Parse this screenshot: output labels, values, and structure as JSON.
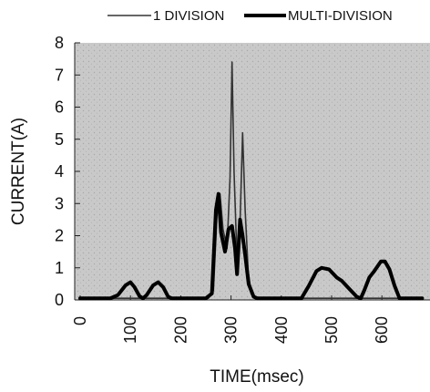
{
  "chart_data": {
    "type": "line",
    "title": "",
    "xlabel": "TIME(msec)",
    "ylabel": "CURRENT(A)",
    "xlim": [
      0,
      680
    ],
    "ylim": [
      0,
      8
    ],
    "x_ticks": [
      0,
      100,
      200,
      300,
      400,
      500,
      600
    ],
    "y_ticks": [
      0,
      1,
      2,
      3,
      4,
      5,
      6,
      7,
      8
    ],
    "grid": false,
    "legend_position": "top",
    "plot_background": "#c8c8c8",
    "series": [
      {
        "name": "1 DIVISION",
        "color": "#333333",
        "points": [
          [
            0,
            0.05
          ],
          [
            255,
            0.05
          ],
          [
            265,
            0.3
          ],
          [
            272,
            2.6
          ],
          [
            278,
            3.3
          ],
          [
            284,
            2.2
          ],
          [
            292,
            1.6
          ],
          [
            298,
            3.8
          ],
          [
            302,
            7.4
          ],
          [
            306,
            4.0
          ],
          [
            312,
            1.2
          ],
          [
            318,
            2.4
          ],
          [
            323,
            5.2
          ],
          [
            328,
            2.8
          ],
          [
            334,
            0.9
          ],
          [
            340,
            0.2
          ],
          [
            350,
            0.05
          ],
          [
            680,
            0.05
          ]
        ]
      },
      {
        "name": "MULTI-DIVISION",
        "color": "#000000",
        "points": [
          [
            0,
            0.05
          ],
          [
            60,
            0.05
          ],
          [
            75,
            0.15
          ],
          [
            90,
            0.45
          ],
          [
            100,
            0.55
          ],
          [
            108,
            0.4
          ],
          [
            118,
            0.12
          ],
          [
            125,
            0.05
          ],
          [
            132,
            0.15
          ],
          [
            145,
            0.45
          ],
          [
            155,
            0.55
          ],
          [
            165,
            0.4
          ],
          [
            175,
            0.1
          ],
          [
            182,
            0.05
          ],
          [
            250,
            0.05
          ],
          [
            262,
            0.2
          ],
          [
            270,
            2.8
          ],
          [
            275,
            3.3
          ],
          [
            280,
            2.1
          ],
          [
            288,
            1.5
          ],
          [
            295,
            2.2
          ],
          [
            302,
            2.3
          ],
          [
            308,
            1.6
          ],
          [
            312,
            0.8
          ],
          [
            318,
            2.5
          ],
          [
            323,
            2.0
          ],
          [
            328,
            1.4
          ],
          [
            335,
            0.5
          ],
          [
            345,
            0.1
          ],
          [
            352,
            0.05
          ],
          [
            440,
            0.05
          ],
          [
            455,
            0.45
          ],
          [
            470,
            0.9
          ],
          [
            480,
            1.0
          ],
          [
            495,
            0.95
          ],
          [
            510,
            0.7
          ],
          [
            520,
            0.6
          ],
          [
            535,
            0.35
          ],
          [
            550,
            0.1
          ],
          [
            558,
            0.05
          ],
          [
            565,
            0.3
          ],
          [
            575,
            0.7
          ],
          [
            585,
            0.9
          ],
          [
            598,
            1.2
          ],
          [
            606,
            1.2
          ],
          [
            615,
            0.95
          ],
          [
            625,
            0.45
          ],
          [
            635,
            0.05
          ],
          [
            680,
            0.05
          ]
        ]
      }
    ]
  }
}
